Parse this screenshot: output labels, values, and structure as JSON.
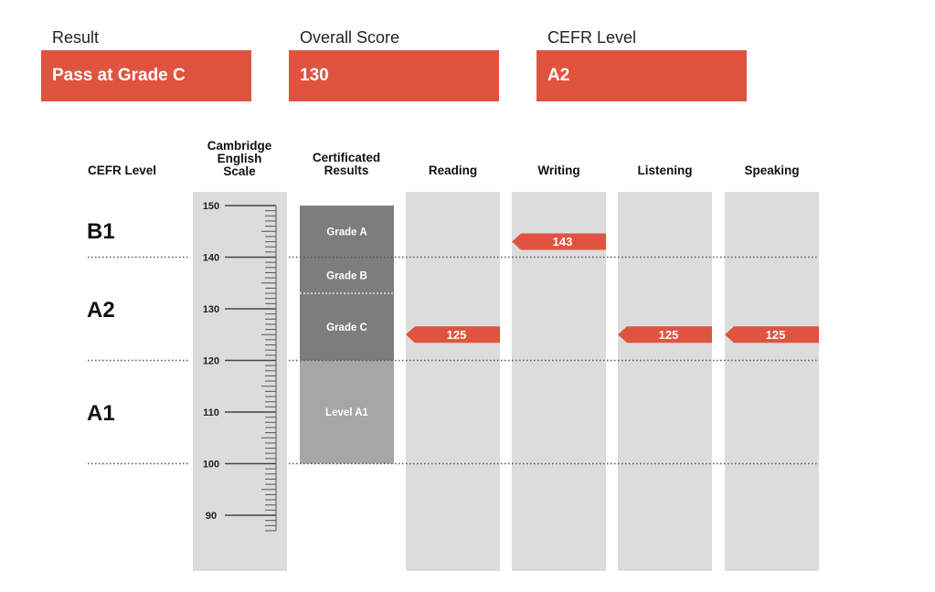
{
  "summary": {
    "result_label": "Result",
    "result_value": "Pass at Grade C",
    "score_label": "Overall Score",
    "score_value": "130",
    "cefr_label": "CEFR Level",
    "cefr_value": "A2"
  },
  "colors": {
    "accent": "#e0533f",
    "column_bg": "#dcdcdc",
    "grade_dark": "#7d7d7d",
    "grade_light": "#a6a6a6"
  },
  "chart_data": {
    "type": "bar",
    "scale_range": [
      85,
      150
    ],
    "headers": {
      "cefr": "CEFR Level",
      "scale": [
        "Cambridge",
        "English",
        "Scale"
      ],
      "certificated": [
        "Certificated",
        "Results"
      ]
    },
    "scale_ticks": [
      150,
      140,
      130,
      120,
      110,
      100,
      90
    ],
    "cefr_levels": [
      {
        "name": "B1",
        "from": 140,
        "to": 160
      },
      {
        "name": "A2",
        "from": 120,
        "to": 140
      },
      {
        "name": "A1",
        "from": 100,
        "to": 120
      }
    ],
    "boundaries": [
      140,
      120,
      100
    ],
    "grades": [
      {
        "label": "Grade A",
        "from": 140,
        "to": 150,
        "shade": "dark"
      },
      {
        "label": "Grade B",
        "from": 133,
        "to": 140,
        "shade": "dark"
      },
      {
        "label": "Grade C",
        "from": 120,
        "to": 133,
        "shade": "dark"
      },
      {
        "label": "Level A1",
        "from": 100,
        "to": 120,
        "shade": "light"
      }
    ],
    "skills": [
      {
        "name": "Reading",
        "score": 125
      },
      {
        "name": "Writing",
        "score": 143
      },
      {
        "name": "Listening",
        "score": 125
      },
      {
        "name": "Speaking",
        "score": 125
      }
    ]
  }
}
